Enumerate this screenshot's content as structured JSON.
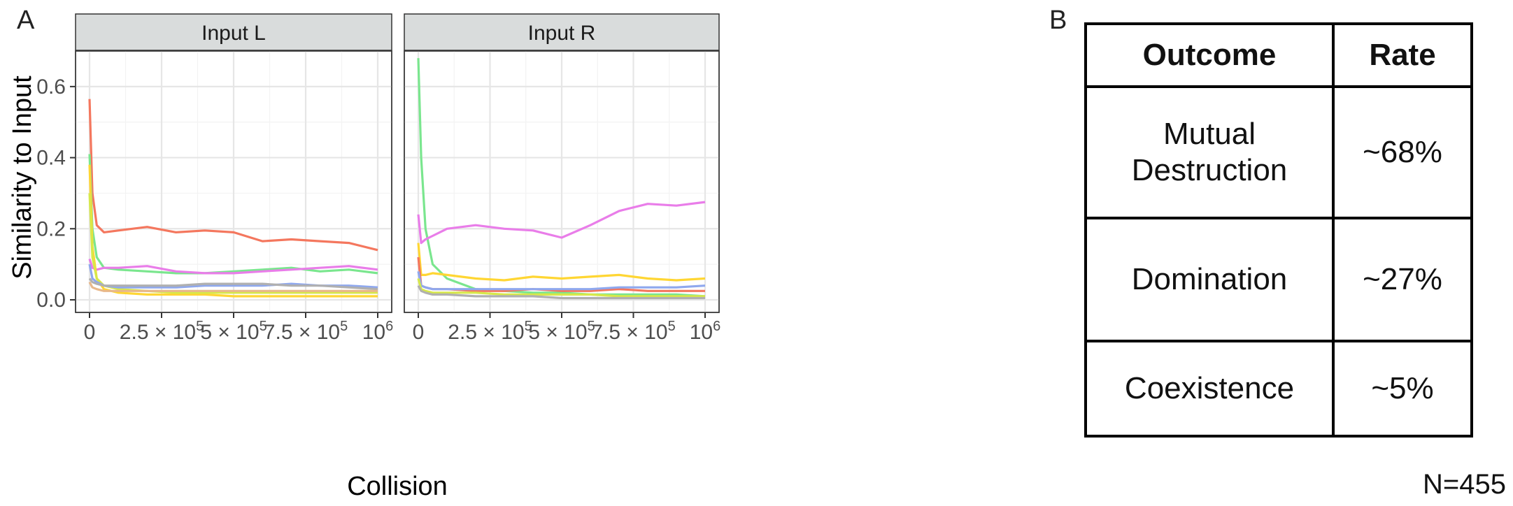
{
  "panel_a_label": "A",
  "panel_b_label": "B",
  "chart_data": {
    "type": "line",
    "xlabel": "Collision",
    "ylabel": "Similarity to Input",
    "xlim": [
      0,
      1000000
    ],
    "ylim": [
      0,
      0.7
    ],
    "x_ticks": [
      0,
      250000,
      500000,
      750000,
      1000000
    ],
    "x_tick_labels": [
      "0",
      "2.5 × 10^5",
      "5 × 10^5",
      "7.5 × 10^5",
      "10^6"
    ],
    "y_ticks": [
      0.0,
      0.2,
      0.4,
      0.6
    ],
    "y_tick_labels": [
      "0.0",
      "0.2",
      "0.4",
      "0.6"
    ],
    "grid": true,
    "x": [
      0,
      10000,
      25000,
      50000,
      100000,
      200000,
      300000,
      400000,
      500000,
      600000,
      700000,
      800000,
      900000,
      1000000
    ],
    "facets": [
      {
        "label": "Input L",
        "series": [
          {
            "color": "#F4775E",
            "values": [
              0.565,
              0.3,
              0.21,
              0.19,
              0.195,
              0.205,
              0.19,
              0.195,
              0.19,
              0.165,
              0.17,
              0.165,
              0.16,
              0.14
            ]
          },
          {
            "color": "#7AE68E",
            "values": [
              0.41,
              0.2,
              0.12,
              0.09,
              0.085,
              0.08,
              0.075,
              0.075,
              0.08,
              0.085,
              0.09,
              0.08,
              0.085,
              0.075
            ]
          },
          {
            "color": "#E97DE9",
            "values": [
              0.115,
              0.09,
              0.085,
              0.09,
              0.09,
              0.095,
              0.08,
              0.075,
              0.075,
              0.08,
              0.085,
              0.09,
              0.095,
              0.085
            ]
          },
          {
            "color": "#FFD633",
            "values": [
              0.38,
              0.15,
              0.06,
              0.03,
              0.02,
              0.015,
              0.015,
              0.015,
              0.01,
              0.01,
              0.01,
              0.01,
              0.01,
              0.01
            ]
          },
          {
            "color": "#D7E84A",
            "values": [
              0.3,
              0.12,
              0.06,
              0.04,
              0.03,
              0.025,
              0.02,
              0.02,
              0.02,
              0.02,
              0.02,
              0.02,
              0.02,
              0.02
            ]
          },
          {
            "color": "#8FA8EE",
            "values": [
              0.1,
              0.06,
              0.05,
              0.04,
              0.035,
              0.035,
              0.035,
              0.04,
              0.04,
              0.04,
              0.045,
              0.04,
              0.04,
              0.035
            ]
          },
          {
            "color": "#B0B0B0",
            "values": [
              0.06,
              0.05,
              0.045,
              0.04,
              0.04,
              0.04,
              0.04,
              0.045,
              0.045,
              0.045,
              0.04,
              0.04,
              0.035,
              0.03
            ]
          },
          {
            "color": "#E8B88A",
            "values": [
              0.05,
              0.035,
              0.03,
              0.025,
              0.025,
              0.025,
              0.025,
              0.025,
              0.025,
              0.025,
              0.025,
              0.025,
              0.025,
              0.025
            ]
          }
        ]
      },
      {
        "label": "Input R",
        "series": [
          {
            "color": "#7AE68E",
            "values": [
              0.68,
              0.4,
              0.2,
              0.1,
              0.06,
              0.03,
              0.025,
              0.02,
              0.02,
              0.015,
              0.015,
              0.015,
              0.015,
              0.01
            ]
          },
          {
            "color": "#E97DE9",
            "values": [
              0.24,
              0.16,
              0.17,
              0.18,
              0.2,
              0.21,
              0.2,
              0.195,
              0.175,
              0.21,
              0.25,
              0.27,
              0.265,
              0.275
            ]
          },
          {
            "color": "#FFD633",
            "values": [
              0.16,
              0.07,
              0.07,
              0.075,
              0.07,
              0.06,
              0.055,
              0.065,
              0.06,
              0.065,
              0.07,
              0.06,
              0.055,
              0.06
            ]
          },
          {
            "color": "#F4775E",
            "values": [
              0.12,
              0.04,
              0.035,
              0.03,
              0.03,
              0.025,
              0.025,
              0.03,
              0.025,
              0.025,
              0.03,
              0.025,
              0.025,
              0.025
            ]
          },
          {
            "color": "#8FA8EE",
            "values": [
              0.08,
              0.04,
              0.035,
              0.03,
              0.03,
              0.03,
              0.03,
              0.03,
              0.03,
              0.03,
              0.035,
              0.035,
              0.035,
              0.04
            ]
          },
          {
            "color": "#D7E84A",
            "values": [
              0.06,
              0.03,
              0.025,
              0.02,
              0.02,
              0.02,
              0.015,
              0.015,
              0.015,
              0.015,
              0.01,
              0.01,
              0.01,
              0.01
            ]
          },
          {
            "color": "#B0B0B0",
            "values": [
              0.04,
              0.025,
              0.02,
              0.015,
              0.015,
              0.01,
              0.01,
              0.01,
              0.005,
              0.005,
              0.005,
              0.005,
              0.005,
              0.005
            ]
          }
        ]
      }
    ]
  },
  "table": {
    "headers": [
      "Outcome",
      "Rate"
    ],
    "rows": [
      {
        "outcome": "Mutual Destruction",
        "rate": "~68%"
      },
      {
        "outcome": "Domination",
        "rate": "~27%"
      },
      {
        "outcome": "Coexistence",
        "rate": "~5%"
      }
    ],
    "n_label": "N=455"
  }
}
